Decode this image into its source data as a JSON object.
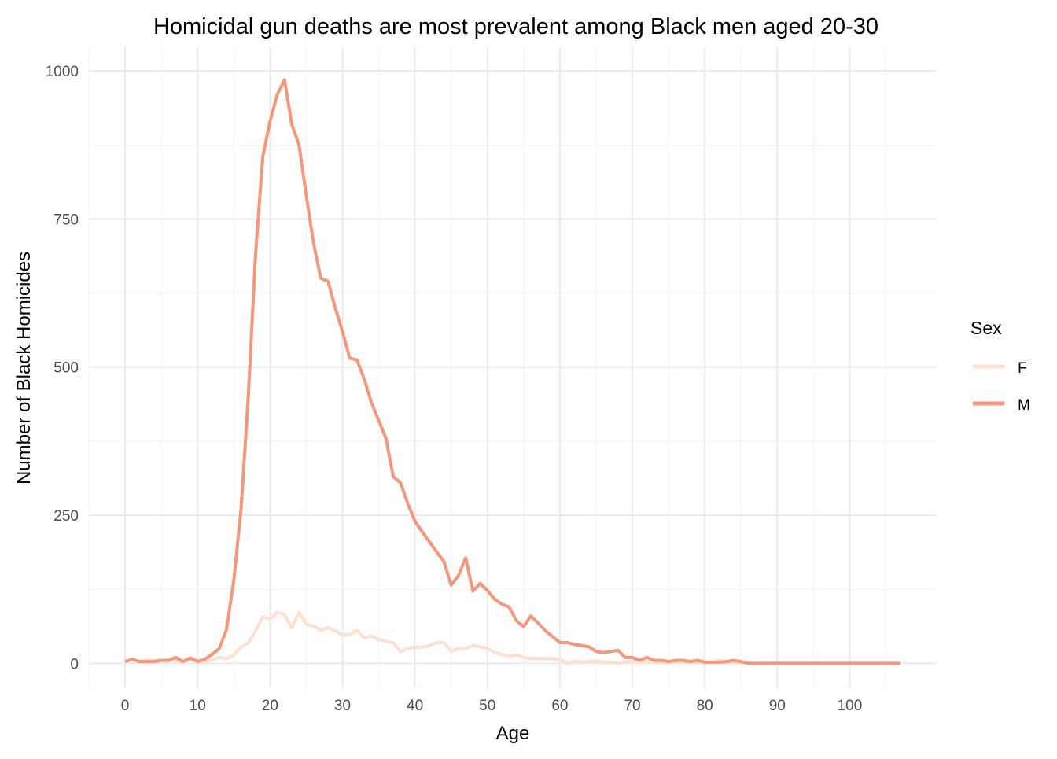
{
  "chart_data": {
    "type": "line",
    "title": "Homicidal gun deaths are most prevalent among Black men aged 20-30",
    "xlabel": "Age",
    "ylabel": "Number of Black Homicides",
    "xlim": [
      -5,
      112
    ],
    "ylim": [
      -42,
      1040
    ],
    "x_ticks": [
      0,
      10,
      20,
      30,
      40,
      50,
      60,
      70,
      80,
      90,
      100
    ],
    "y_ticks": [
      0,
      250,
      500,
      750,
      1000
    ],
    "grid": true,
    "legend": {
      "title": "Sex",
      "position": "right"
    },
    "series": [
      {
        "name": "F",
        "color": "#fde0d2",
        "x": [
          0,
          1,
          2,
          3,
          4,
          5,
          6,
          7,
          8,
          9,
          10,
          11,
          12,
          13,
          14,
          15,
          16,
          17,
          18,
          19,
          20,
          21,
          22,
          23,
          24,
          25,
          26,
          27,
          28,
          29,
          30,
          31,
          32,
          33,
          34,
          35,
          36,
          37,
          38,
          39,
          40,
          41,
          42,
          43,
          44,
          45,
          46,
          47,
          48,
          49,
          50,
          51,
          52,
          53,
          54,
          55,
          56,
          57,
          58,
          59,
          60,
          61,
          62,
          63,
          64,
          65,
          66,
          67,
          68,
          69,
          70,
          71,
          72,
          73,
          74,
          75,
          76,
          77,
          78,
          79,
          80,
          81,
          82,
          83,
          84,
          85,
          86,
          87,
          88,
          89,
          90,
          91,
          92,
          93,
          94,
          95,
          96,
          97,
          98,
          99,
          100,
          101,
          102,
          103,
          104,
          105,
          106,
          107
        ],
        "values": [
          3,
          6,
          3,
          6,
          5,
          5,
          6,
          4,
          3,
          6,
          5,
          3,
          6,
          10,
          8,
          14,
          28,
          34,
          55,
          78,
          75,
          86,
          82,
          60,
          86,
          66,
          63,
          56,
          60,
          55,
          48,
          48,
          56,
          43,
          46,
          40,
          37,
          35,
          20,
          25,
          27,
          27,
          30,
          35,
          35,
          20,
          25,
          25,
          30,
          28,
          25,
          18,
          15,
          12,
          14,
          10,
          8,
          8,
          8,
          8,
          6,
          0,
          4,
          2,
          3,
          4,
          2,
          2,
          0,
          2,
          3,
          3,
          2,
          3,
          2,
          2,
          2,
          2,
          2,
          2,
          2,
          2,
          5,
          2,
          2,
          2,
          0,
          0,
          0,
          0,
          0,
          0,
          0,
          0,
          0,
          0,
          0,
          0,
          0,
          0,
          0,
          0,
          0,
          0,
          0,
          0,
          0,
          0
        ]
      },
      {
        "name": "M",
        "color": "#f4977a",
        "x": [
          0,
          1,
          2,
          3,
          4,
          5,
          6,
          7,
          8,
          9,
          10,
          11,
          12,
          13,
          14,
          15,
          16,
          17,
          18,
          19,
          20,
          21,
          22,
          23,
          24,
          25,
          26,
          27,
          28,
          29,
          30,
          31,
          32,
          33,
          34,
          35,
          36,
          37,
          38,
          39,
          40,
          41,
          42,
          43,
          44,
          45,
          46,
          47,
          48,
          49,
          50,
          51,
          52,
          53,
          54,
          55,
          56,
          57,
          58,
          59,
          60,
          61,
          62,
          63,
          64,
          65,
          66,
          67,
          68,
          69,
          70,
          71,
          72,
          73,
          74,
          75,
          76,
          77,
          78,
          79,
          80,
          81,
          82,
          83,
          84,
          85,
          86,
          87,
          88,
          89,
          90,
          91,
          92,
          93,
          94,
          95,
          96,
          97,
          98,
          99,
          100,
          101,
          102,
          103,
          104,
          105,
          106,
          107
        ],
        "values": [
          3,
          7,
          3,
          3,
          3,
          5,
          5,
          10,
          3,
          9,
          3,
          7,
          15,
          25,
          57,
          140,
          260,
          450,
          690,
          855,
          915,
          960,
          985,
          910,
          875,
          790,
          710,
          650,
          645,
          600,
          560,
          515,
          512,
          480,
          440,
          410,
          380,
          315,
          305,
          270,
          240,
          222,
          205,
          188,
          172,
          132,
          148,
          178,
          122,
          135,
          123,
          108,
          100,
          95,
          72,
          62,
          80,
          68,
          55,
          45,
          35,
          35,
          32,
          30,
          28,
          20,
          18,
          20,
          22,
          10,
          10,
          5,
          10,
          5,
          5,
          3,
          5,
          5,
          3,
          5,
          2,
          2,
          2,
          3,
          5,
          3,
          0,
          0,
          0,
          0,
          0,
          0,
          0,
          0,
          0,
          0,
          0,
          0,
          0,
          0,
          0,
          0,
          0,
          0,
          0,
          0,
          0,
          0
        ]
      }
    ]
  }
}
